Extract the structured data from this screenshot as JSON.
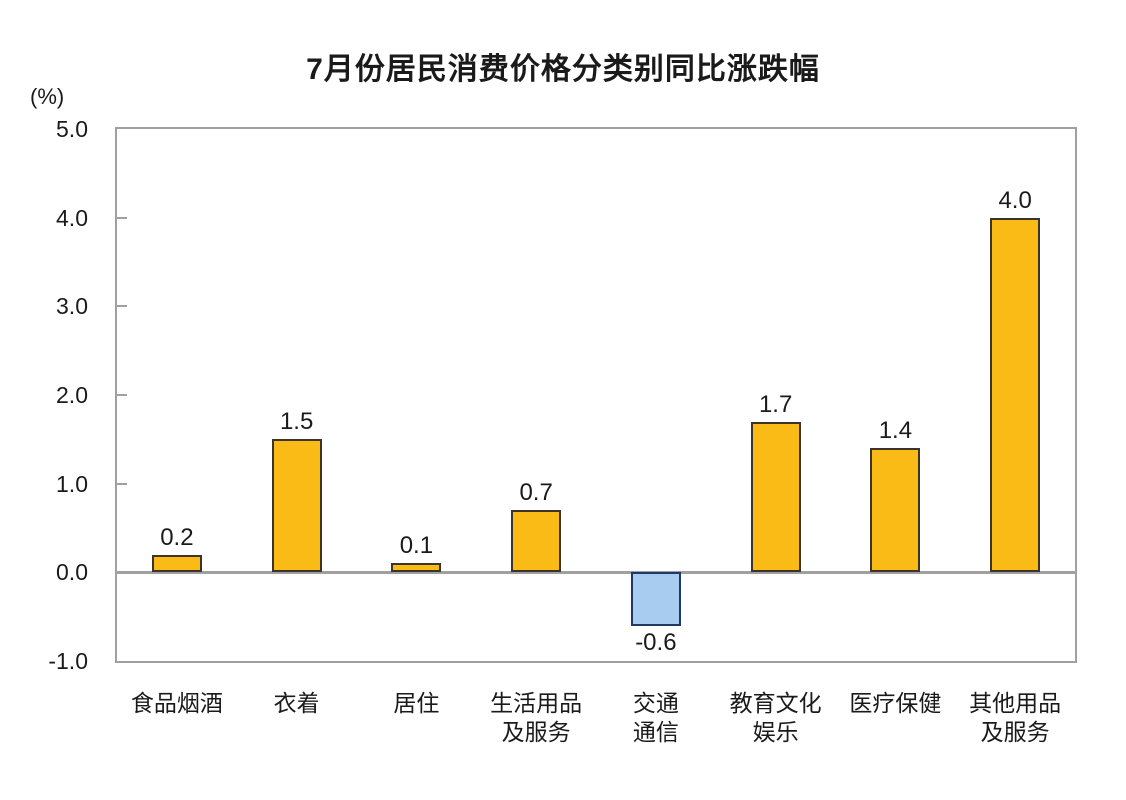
{
  "title": "7月份居民消费价格分类别同比涨跌幅",
  "unit_label": "(%)",
  "chart_data": {
    "type": "bar",
    "title": "7月份居民消费价格分类别同比涨跌幅",
    "xlabel": "",
    "ylabel": "(%)",
    "ylim": [
      -1.0,
      5.0
    ],
    "ytick_step": 1.0,
    "yticks": [
      "5.0",
      "4.0",
      "3.0",
      "2.0",
      "1.0",
      "0.0",
      "-1.0"
    ],
    "grid": false,
    "legend": "none",
    "categories": [
      "食品烟酒",
      "衣着",
      "居住",
      "生活用品及服务",
      "交通通信",
      "教育文化娱乐",
      "医疗保健",
      "其他用品及服务"
    ],
    "category_lines": [
      [
        "食品烟酒"
      ],
      [
        "衣着"
      ],
      [
        "居住"
      ],
      [
        "生活用品",
        "及服务"
      ],
      [
        "交通",
        "通信"
      ],
      [
        "教育文化",
        "娱乐"
      ],
      [
        "医疗保健"
      ],
      [
        "其他用品",
        "及服务"
      ]
    ],
    "values": [
      0.2,
      1.5,
      0.1,
      0.7,
      -0.6,
      1.7,
      1.4,
      4.0
    ],
    "value_labels": [
      "0.2",
      "1.5",
      "0.1",
      "0.7",
      "-0.6",
      "1.7",
      "1.4",
      "4.0"
    ],
    "colors": {
      "positive_fill": "#FBBB16",
      "positive_border": "#3A342A",
      "negative_fill": "#A7CCF0",
      "negative_border": "#1F3864",
      "axis_frame": "#A0A0A0",
      "text": "#1A1A1A"
    }
  }
}
